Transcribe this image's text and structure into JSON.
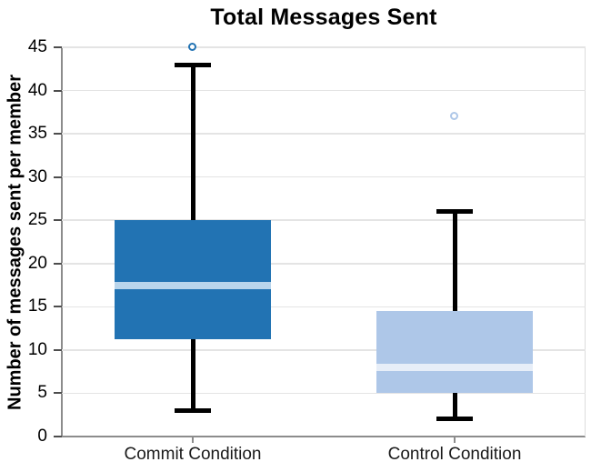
{
  "chart_data": {
    "type": "boxplot",
    "title": "Total Messages Sent",
    "ylabel": "Number of messages sent per member",
    "xlabel": "",
    "categories": [
      "Commit Condition",
      "Control Condition"
    ],
    "ylim": [
      0,
      45
    ],
    "yticks": [
      0,
      5,
      10,
      15,
      20,
      25,
      30,
      35,
      40,
      45
    ],
    "grid": "horizontal",
    "legend": "none",
    "series": [
      {
        "name": "Commit Condition",
        "whisker_low": 3,
        "q1": 11.25,
        "median": 17.5,
        "q3": 25,
        "whisker_high": 43,
        "outliers": [
          45
        ],
        "box_color": "#2273b3",
        "median_color": "#b9d5ec"
      },
      {
        "name": "Control Condition",
        "whisker_low": 2,
        "q1": 5,
        "median": 8,
        "q3": 14.5,
        "whisker_high": 26,
        "outliers": [
          37
        ],
        "box_color": "#aec7e8",
        "median_color": "#e7eef8"
      }
    ],
    "style": {
      "grid_color": "#e4e4e4",
      "axis_color": "#8c8c8c",
      "right_border_color": "#dcdcdc",
      "whisker_color": "#000000",
      "y_tick_color": "#4d4d4d",
      "x_tick_color": "#8c8c8c",
      "text_color": "#000000",
      "background_color": "#ffffff"
    }
  }
}
